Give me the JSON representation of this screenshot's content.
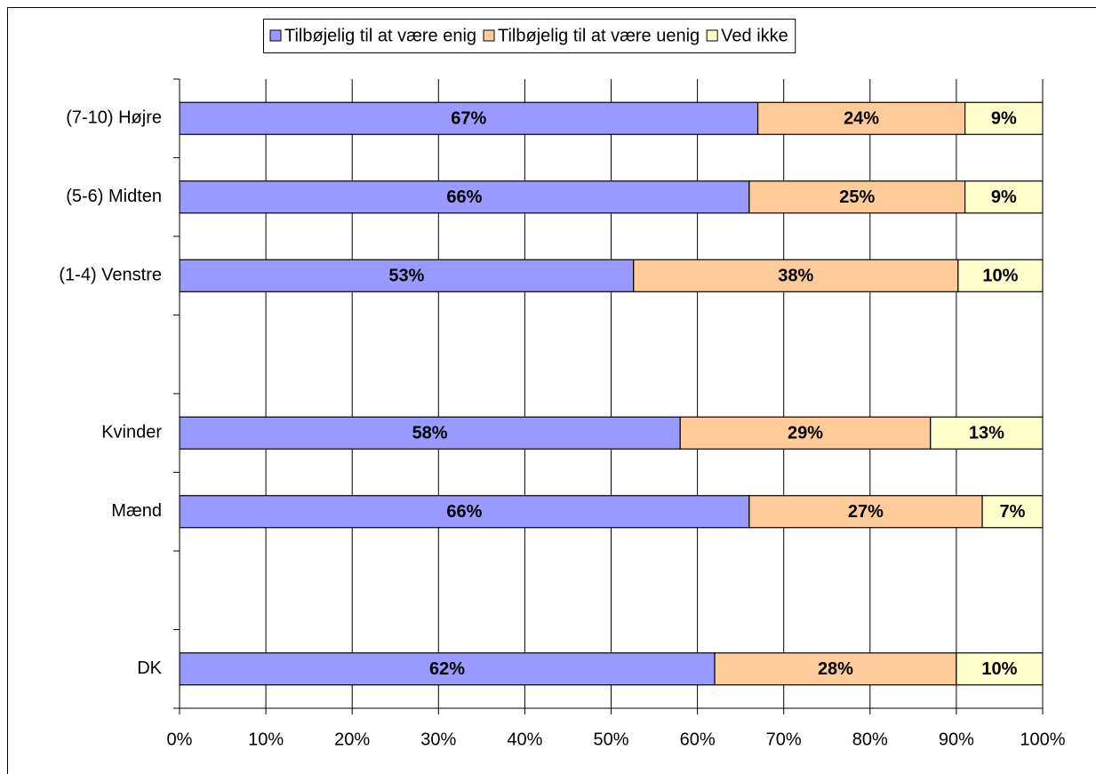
{
  "chart_data": {
    "type": "stacked-bar-horizontal",
    "categories": [
      "(7-10) Højre",
      "(5-6) Midten",
      "(1-4) Venstre",
      null,
      "Kvinder",
      "Mænd",
      null,
      "DK"
    ],
    "series": [
      {
        "name": "Tilbøjelig til at være enig",
        "color": "#9999ff",
        "values": [
          67,
          66,
          52.6,
          null,
          58,
          66,
          null,
          62
        ],
        "value_labels": [
          "67%",
          "66%",
          "53%",
          null,
          "58%",
          "66%",
          null,
          "62%"
        ]
      },
      {
        "name": "Tilbøjelig til at være uenig",
        "color": "#ffcc99",
        "values": [
          24,
          25,
          37.6,
          null,
          29,
          27,
          null,
          28
        ],
        "value_labels": [
          "24%",
          "25%",
          "38%",
          null,
          "29%",
          "27%",
          null,
          "28%"
        ]
      },
      {
        "name": "Ved ikke",
        "color": "#ffffcc",
        "values": [
          9,
          9,
          9.8,
          null,
          13,
          7,
          null,
          10
        ],
        "value_labels": [
          "9%",
          "9%",
          "10%",
          null,
          "13%",
          "7%",
          null,
          "10%"
        ]
      }
    ],
    "xlim": [
      0,
      100
    ],
    "xticks": [
      {
        "value": 0,
        "label": "0%"
      },
      {
        "value": 10,
        "label": "10%"
      },
      {
        "value": 20,
        "label": "20%"
      },
      {
        "value": 30,
        "label": "30%"
      },
      {
        "value": 40,
        "label": "40%"
      },
      {
        "value": 50,
        "label": "50%"
      },
      {
        "value": 60,
        "label": "60%"
      },
      {
        "value": 70,
        "label": "70%"
      },
      {
        "value": 80,
        "label": "80%"
      },
      {
        "value": 90,
        "label": "90%"
      },
      {
        "value": 100,
        "label": "100%"
      }
    ],
    "grid": true,
    "legend": "top"
  }
}
